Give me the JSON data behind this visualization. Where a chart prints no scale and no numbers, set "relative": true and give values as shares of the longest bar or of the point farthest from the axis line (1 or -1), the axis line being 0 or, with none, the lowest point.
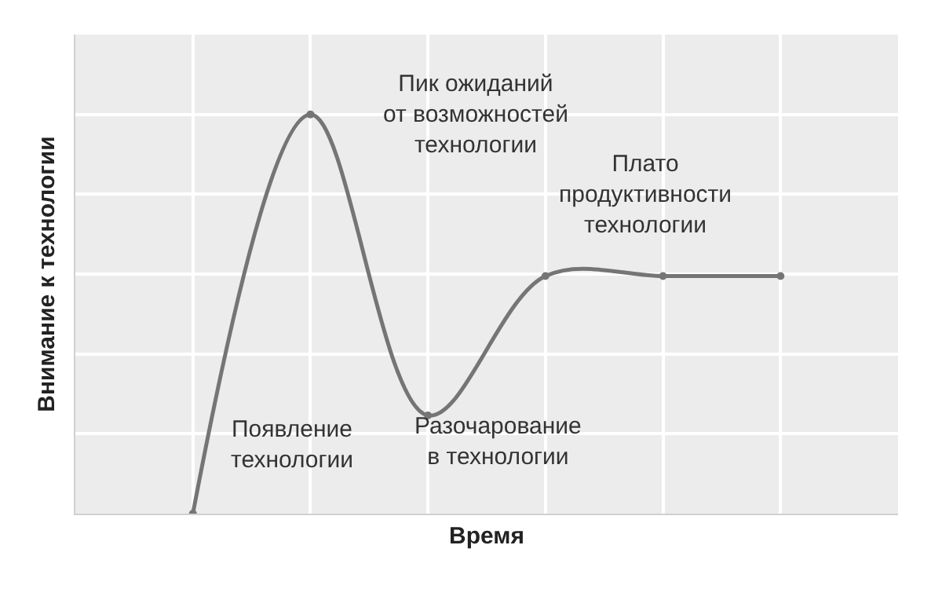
{
  "chart_data": {
    "type": "line",
    "relative": true,
    "xlabel": "Время",
    "ylabel": "Внимание к технологии",
    "categories": [
      null,
      null,
      null,
      null,
      null,
      null,
      null,
      null
    ],
    "series": [
      {
        "color": "#757575",
        "values": [
          null,
          0,
          1,
          0.246,
          0.595,
          0.595,
          0.595,
          null
        ]
      }
    ],
    "annotations": [
      "Появление\nтехнологии",
      "Пик ожиданий\nот возможностей\nтехнологии",
      "Разочарование\nв технологии",
      "Плато\nпродуктивности\nтехнологии"
    ],
    "grid": true,
    "marker": "circle",
    "line_style": "solid",
    "tick_labels": false
  }
}
